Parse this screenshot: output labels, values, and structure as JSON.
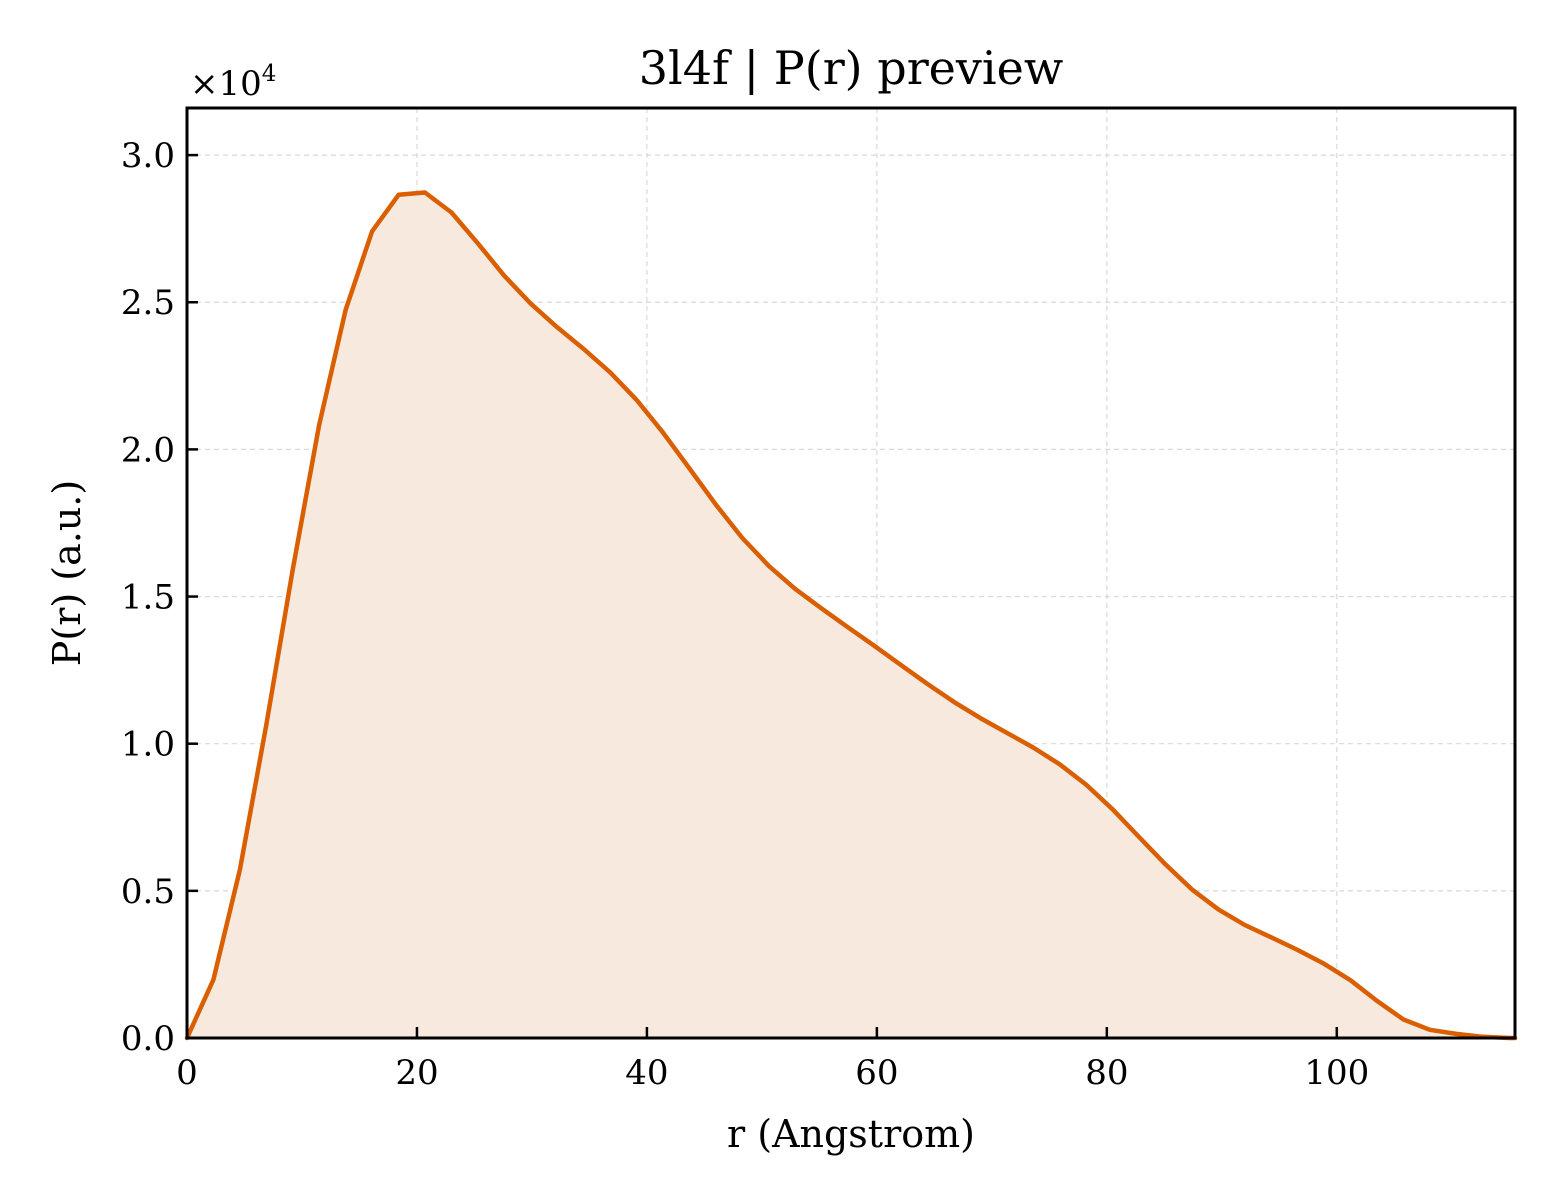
{
  "chart_data": {
    "type": "area",
    "title": "3l4f | P(r) preview",
    "xlabel": "r (Angstrom)",
    "ylabel": "P(r) (a.u.)",
    "y_multiplier": "×10",
    "y_multiplier_exp": "4",
    "xlim": [
      0,
      115.5
    ],
    "ylim": [
      0,
      31600
    ],
    "x_ticks": [
      0,
      20,
      40,
      60,
      80,
      100
    ],
    "x_tick_labels": [
      "0",
      "20",
      "40",
      "60",
      "80",
      "100"
    ],
    "y_ticks": [
      0,
      5000,
      10000,
      15000,
      20000,
      25000,
      30000
    ],
    "y_tick_labels": [
      "0.0",
      "0.5",
      "1.0",
      "1.5",
      "2.0",
      "2.5",
      "3.0"
    ],
    "grid": true,
    "line_color": "#d95f02",
    "fill_color": "#f8e9df",
    "series": [
      {
        "x": [
          0,
          2.3,
          4.6,
          6.9,
          9.2,
          11.5,
          13.8,
          16.1,
          18.4,
          20.7,
          23.0,
          25.3,
          27.6,
          29.9,
          32.2,
          34.5,
          36.8,
          39.1,
          41.4,
          43.7,
          46.0,
          48.3,
          50.6,
          52.9,
          55.2,
          57.5,
          59.8,
          62.1,
          64.4,
          66.7,
          69.0,
          71.3,
          73.6,
          75.9,
          78.2,
          80.5,
          82.8,
          85.1,
          87.4,
          89.7,
          92.0,
          94.3,
          96.6,
          98.9,
          101.2,
          103.5,
          105.8,
          108.1,
          110.4,
          112.7,
          115.0
        ],
        "y": [
          0,
          1980,
          5720,
          10640,
          15930,
          20840,
          24750,
          27410,
          28650,
          28730,
          28050,
          27000,
          25900,
          24950,
          24150,
          23410,
          22620,
          21680,
          20570,
          19350,
          18120,
          16990,
          16040,
          15260,
          14590,
          13950,
          13320,
          12670,
          12030,
          11420,
          10870,
          10370,
          9870,
          9300,
          8610,
          7770,
          6830,
          5900,
          5050,
          4370,
          3840,
          3420,
          2990,
          2520,
          1960,
          1260,
          630,
          280,
          140,
          40,
          0
        ]
      }
    ]
  }
}
